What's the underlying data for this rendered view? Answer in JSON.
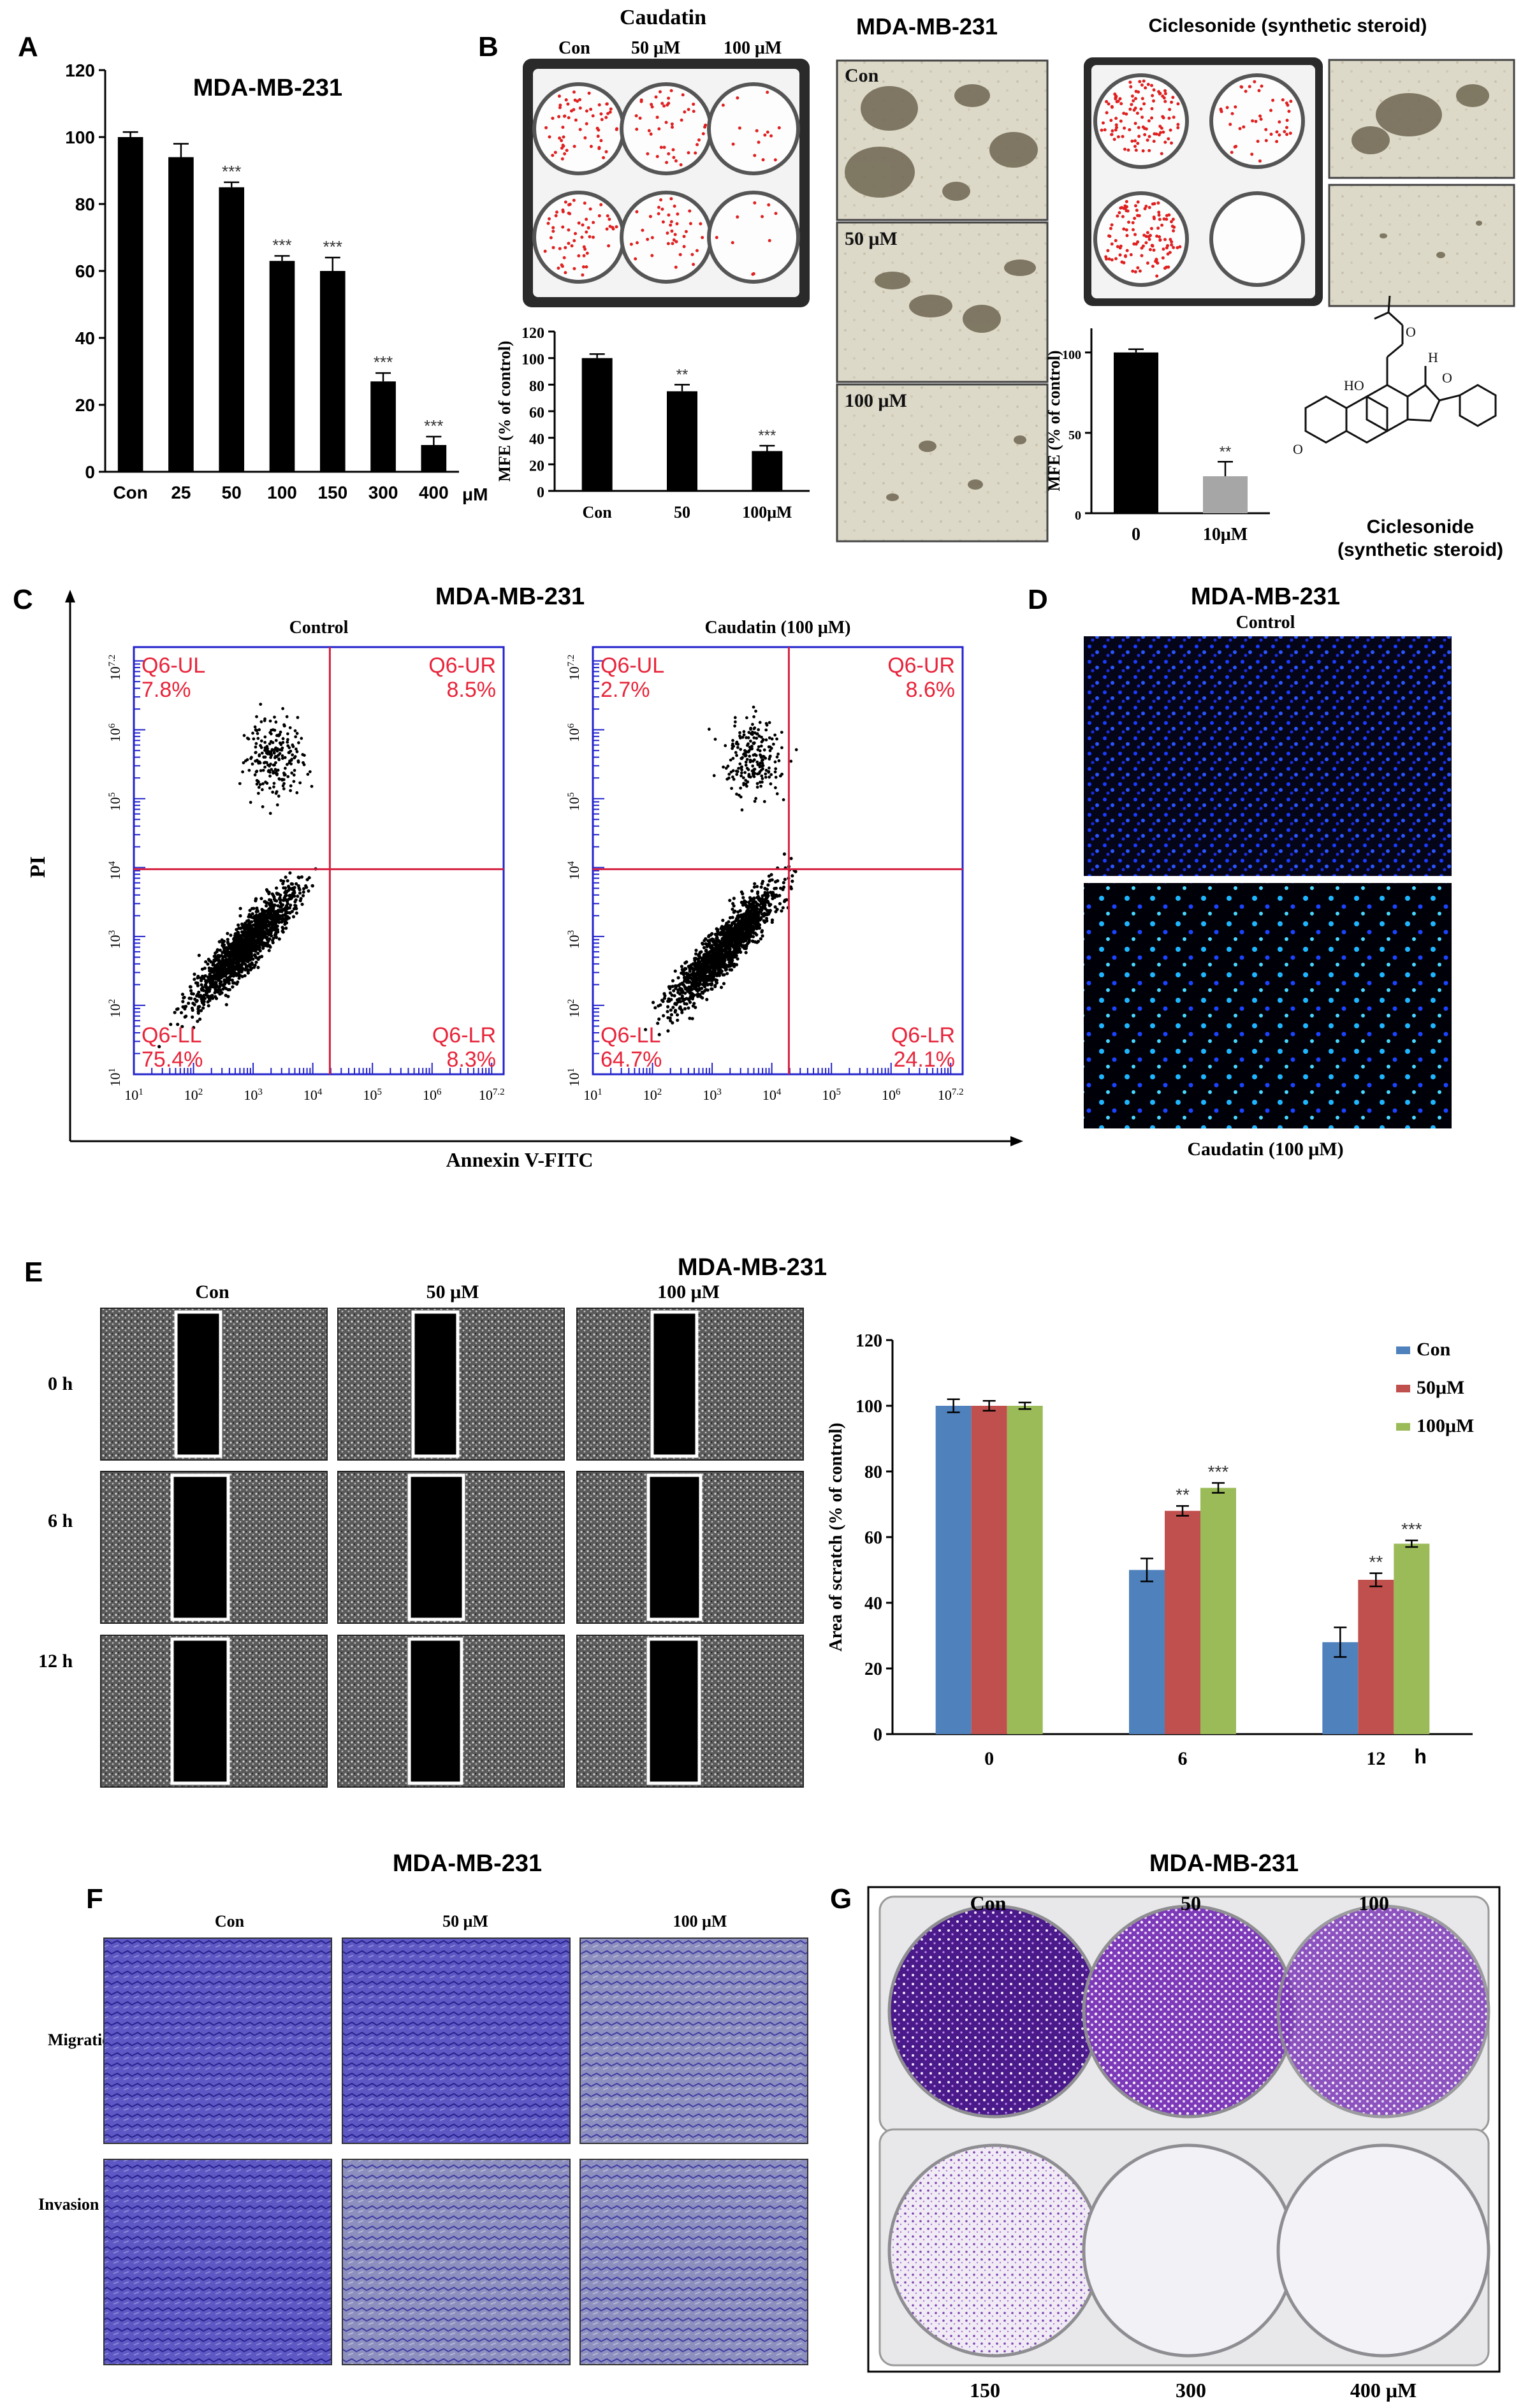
{
  "panelA": {
    "letter": "A",
    "title": "MDA-MB-231",
    "chart_data": {
      "type": "bar",
      "title": "MDA-MB-231",
      "categories": [
        "Con",
        "25",
        "50",
        "100",
        "150",
        "300",
        "400"
      ],
      "x_unit": "μM",
      "values": [
        100,
        94,
        85,
        63,
        60,
        27,
        8
      ],
      "errors": [
        1.5,
        4,
        1.5,
        1.5,
        4,
        2.5,
        2.5
      ],
      "significance": [
        "",
        "",
        "***",
        "***",
        "***",
        "***",
        "***"
      ],
      "yticks": [
        0,
        20,
        40,
        60,
        80,
        100,
        120
      ],
      "ylim": [
        0,
        120
      ],
      "color": "#000000"
    }
  },
  "panelB": {
    "letter": "B",
    "caudatin_title": "Caudatin",
    "plate_labels": [
      "Con",
      "50 μM",
      "100 μM"
    ],
    "micro_title": "MDA-MB-231",
    "micro_labels": [
      "Con",
      "50 μM",
      "100 μM"
    ],
    "ciclesonide_title": "Ciclesonide (synthetic steroid)",
    "structure_label_1": "Ciclesonide",
    "structure_label_2": "(synthetic steroid)",
    "structure_atoms": [
      "HO",
      "O",
      "O",
      "O",
      "H"
    ],
    "chart_caudatin": {
      "type": "bar",
      "categories": [
        "Con",
        "50",
        "100μM"
      ],
      "values": [
        100,
        75,
        30
      ],
      "errors": [
        3,
        5,
        4
      ],
      "significance": [
        "",
        "**",
        "***"
      ],
      "ylabel": "MFE (% of control)",
      "yticks": [
        0,
        20,
        40,
        60,
        80,
        100,
        120
      ],
      "ylim": [
        0,
        120
      ],
      "color": "#000000"
    },
    "chart_ciclesonide": {
      "type": "bar",
      "categories": [
        "0",
        "10μM"
      ],
      "values": [
        100,
        23
      ],
      "errors": [
        2,
        9
      ],
      "significance": [
        "",
        "**"
      ],
      "ylabel": "MFE (% of control)",
      "yticks": [
        0,
        50,
        100
      ],
      "ylim": [
        0,
        115
      ],
      "colors": [
        "#000000",
        "#a6a6a6"
      ]
    }
  },
  "panelC": {
    "letter": "C",
    "title": "MDA-MB-231",
    "xlabel": "Annexin V-FITC",
    "ylabel": "PI",
    "plots": [
      {
        "title": "Control",
        "quadrants": {
          "UL": "Q6-UL",
          "UR": "Q6-UR",
          "LL": "Q6-LL",
          "LR": "Q6-LR"
        },
        "percentages": {
          "UL": "7.8%",
          "UR": "8.5%",
          "LL": "75.4%",
          "LR": "8.3%"
        }
      },
      {
        "title": "Caudatin (100 μM)",
        "quadrants": {
          "UL": "Q6-UL",
          "UR": "Q6-UR",
          "LL": "Q6-LL",
          "LR": "Q6-LR"
        },
        "percentages": {
          "UL": "2.7%",
          "UR": "8.6%",
          "LL": "64.7%",
          "LR": "24.1%"
        }
      }
    ],
    "xticks": [
      "10",
      "10",
      "10",
      "10",
      "10",
      "10",
      "10"
    ],
    "xtick_exp": [
      "1",
      "2",
      "3",
      "4",
      "5",
      "6",
      "7.2"
    ],
    "yticks": [
      "10",
      "10",
      "10",
      "10",
      "10",
      "10",
      "10"
    ],
    "ytick_exp": [
      "1",
      "2",
      "3",
      "4",
      "5",
      "6",
      "7.2"
    ]
  },
  "panelD": {
    "letter": "D",
    "title": "MDA-MB-231",
    "top_label": "Control",
    "bottom_label": "Caudatin (100 μM)"
  },
  "panelE": {
    "letter": "E",
    "title": "MDA-MB-231",
    "col_labels": [
      "Con",
      "50 μM",
      "100 μM"
    ],
    "row_labels": [
      "0 h",
      "6 h",
      "12 h"
    ],
    "chart_data": {
      "type": "bar",
      "categories": [
        "0",
        "6",
        "12"
      ],
      "x_unit": "h",
      "ylabel": "Area of scratch (% of control)",
      "yticks": [
        0,
        20,
        40,
        60,
        80,
        100,
        120
      ],
      "ylim": [
        0,
        120
      ],
      "series": [
        {
          "name": "Con",
          "color": "#4f81bd",
          "values": [
            100,
            50,
            28
          ],
          "errors": [
            2,
            3.5,
            4.5
          ],
          "significance": [
            "",
            "",
            ""
          ]
        },
        {
          "name": "50μM",
          "color": "#c0504d",
          "values": [
            100,
            68,
            47
          ],
          "errors": [
            1.5,
            1.5,
            2
          ],
          "significance": [
            "",
            "**",
            "**"
          ]
        },
        {
          "name": "100μM",
          "color": "#9bbb59",
          "values": [
            100,
            75,
            58
          ],
          "errors": [
            1,
            1.5,
            1
          ],
          "significance": [
            "",
            "***",
            "***"
          ]
        }
      ]
    }
  },
  "panelF": {
    "letter": "F",
    "title": "MDA-MB-231",
    "col_labels": [
      "Con",
      "50 μM",
      "100 μM"
    ],
    "row_labels": [
      "Migration",
      "Invasion"
    ]
  },
  "panelG": {
    "letter": "G",
    "title": "MDA-MB-231",
    "top_labels": [
      "Con",
      "50",
      "100"
    ],
    "bottom_labels": [
      "150",
      "300",
      "400 μM"
    ]
  }
}
